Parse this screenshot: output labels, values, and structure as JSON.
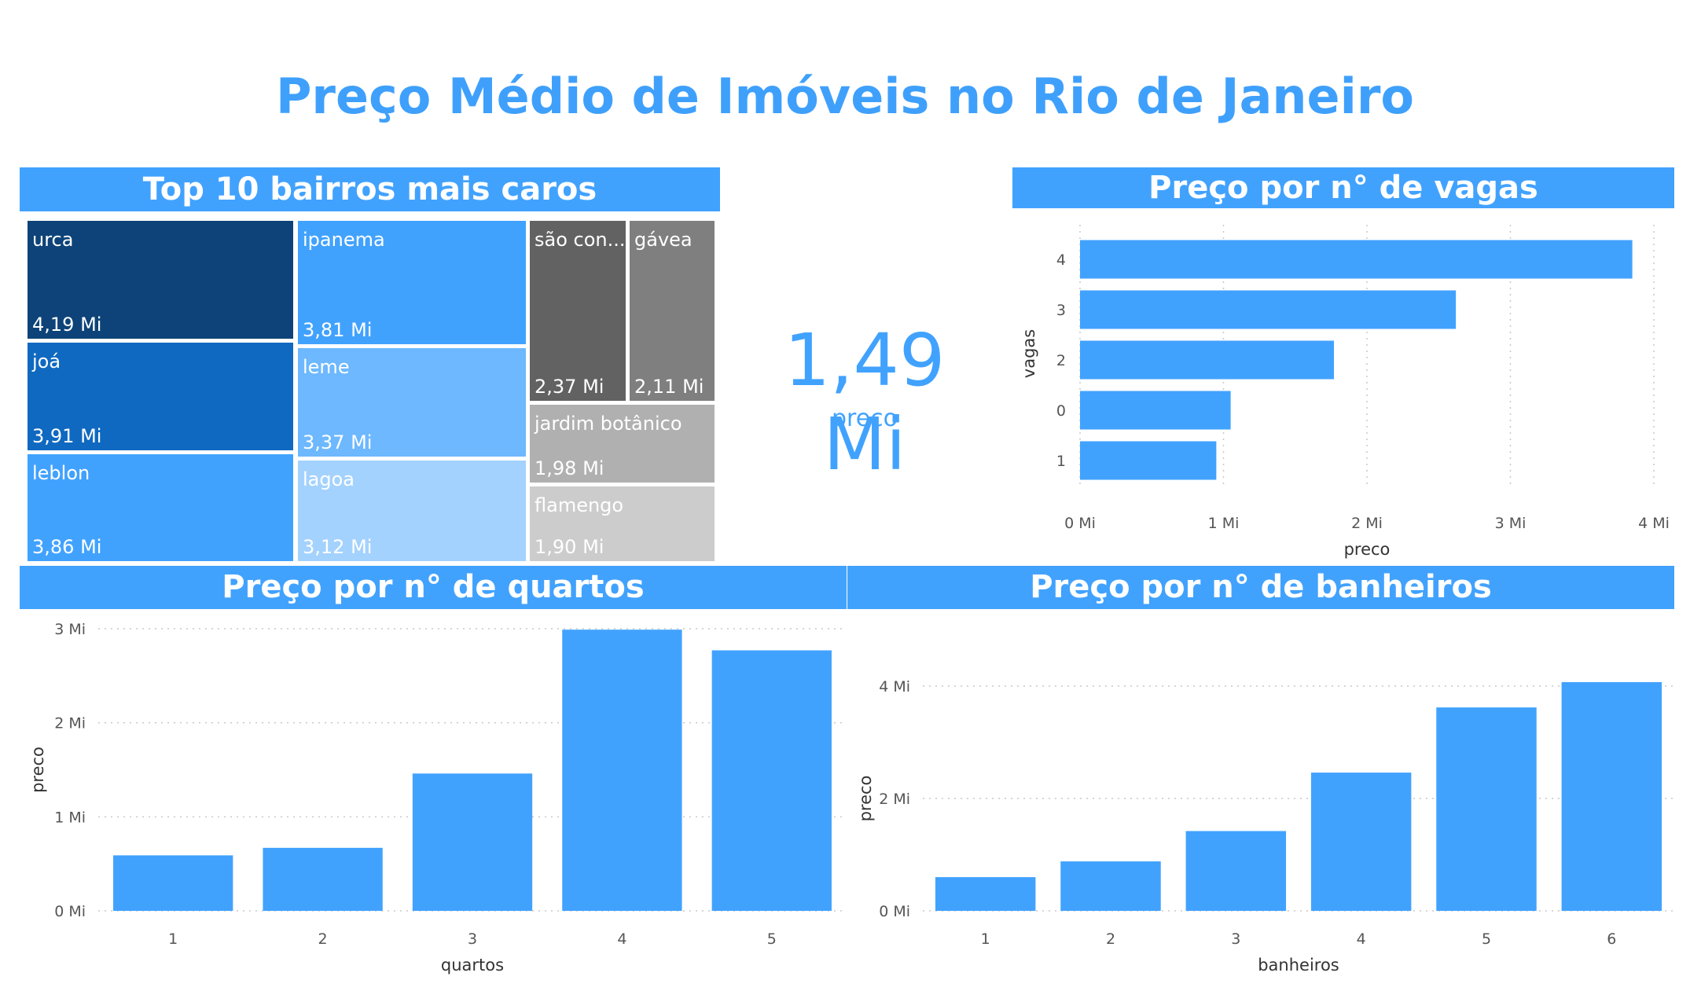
{
  "page_title": "Preço Médio de Imóveis no Rio de Janeiro",
  "colors": {
    "accent": "#41a2fe",
    "title": "#3fa0fc"
  },
  "kpi": {
    "value": "1,49 Mi",
    "label": "preco"
  },
  "chart_data": [
    {
      "type": "treemap",
      "title": "Top 10 bairros mais caros",
      "items": [
        {
          "label": "urca",
          "value": 4.19,
          "value_label": "4,19 Mi",
          "color": "#0d4378"
        },
        {
          "label": "joá",
          "value": 3.91,
          "value_label": "3,91 Mi",
          "color": "#1069c0"
        },
        {
          "label": "leblon",
          "value": 3.86,
          "value_label": "3,86 Mi",
          "color": "#41a2fe"
        },
        {
          "label": "ipanema",
          "value": 3.81,
          "value_label": "3,81 Mi",
          "color": "#41a2fe"
        },
        {
          "label": "leme",
          "value": 3.37,
          "value_label": "3,37 Mi",
          "color": "#6db8fe"
        },
        {
          "label": "lagoa",
          "value": 3.12,
          "value_label": "3,12 Mi",
          "color": "#a4d2fe"
        },
        {
          "label": "são con...",
          "value": 2.37,
          "value_label": "2,37 Mi",
          "color": "#626262"
        },
        {
          "label": "gávea",
          "value": 2.11,
          "value_label": "2,11 Mi",
          "color": "#7f7f7f"
        },
        {
          "label": "jardim botânico",
          "value": 1.98,
          "value_label": "1,98 Mi",
          "color": "#b0b0b0"
        },
        {
          "label": "flamengo",
          "value": 1.9,
          "value_label": "1,90 Mi",
          "color": "#cccccc"
        }
      ]
    },
    {
      "type": "bar",
      "orientation": "horizontal",
      "title": "Preço por n° de vagas",
      "categories": [
        "4",
        "3",
        "2",
        "0",
        "1"
      ],
      "values": [
        3.85,
        2.62,
        1.77,
        1.05,
        0.95
      ],
      "xlabel": "preco",
      "ylabel": "vagas",
      "xlim": [
        0,
        4
      ],
      "ticks": [
        "0 Mi",
        "1 Mi",
        "2 Mi",
        "3 Mi",
        "4 Mi"
      ],
      "tick_values": [
        0,
        1,
        2,
        3,
        4
      ]
    },
    {
      "type": "bar",
      "title": "Preço por n° de quartos",
      "categories": [
        "1",
        "2",
        "3",
        "4",
        "5"
      ],
      "values": [
        0.59,
        0.67,
        1.46,
        2.99,
        2.77
      ],
      "xlabel": "quartos",
      "ylabel": "preco",
      "ylim": [
        0,
        3
      ],
      "ticks": [
        "0 Mi",
        "1 Mi",
        "2 Mi",
        "3 Mi"
      ],
      "tick_values": [
        0,
        1,
        2,
        3
      ]
    },
    {
      "type": "bar",
      "title": "Preço por n° de banheiros",
      "categories": [
        "1",
        "2",
        "3",
        "4",
        "5",
        "6"
      ],
      "values": [
        0.6,
        0.88,
        1.42,
        2.46,
        3.62,
        4.07
      ],
      "xlabel": "banheiros",
      "ylabel": "preco",
      "ylim": [
        0,
        4
      ],
      "ticks": [
        "0 Mi",
        "2 Mi",
        "4 Mi"
      ],
      "tick_values": [
        0,
        2,
        4
      ]
    }
  ]
}
